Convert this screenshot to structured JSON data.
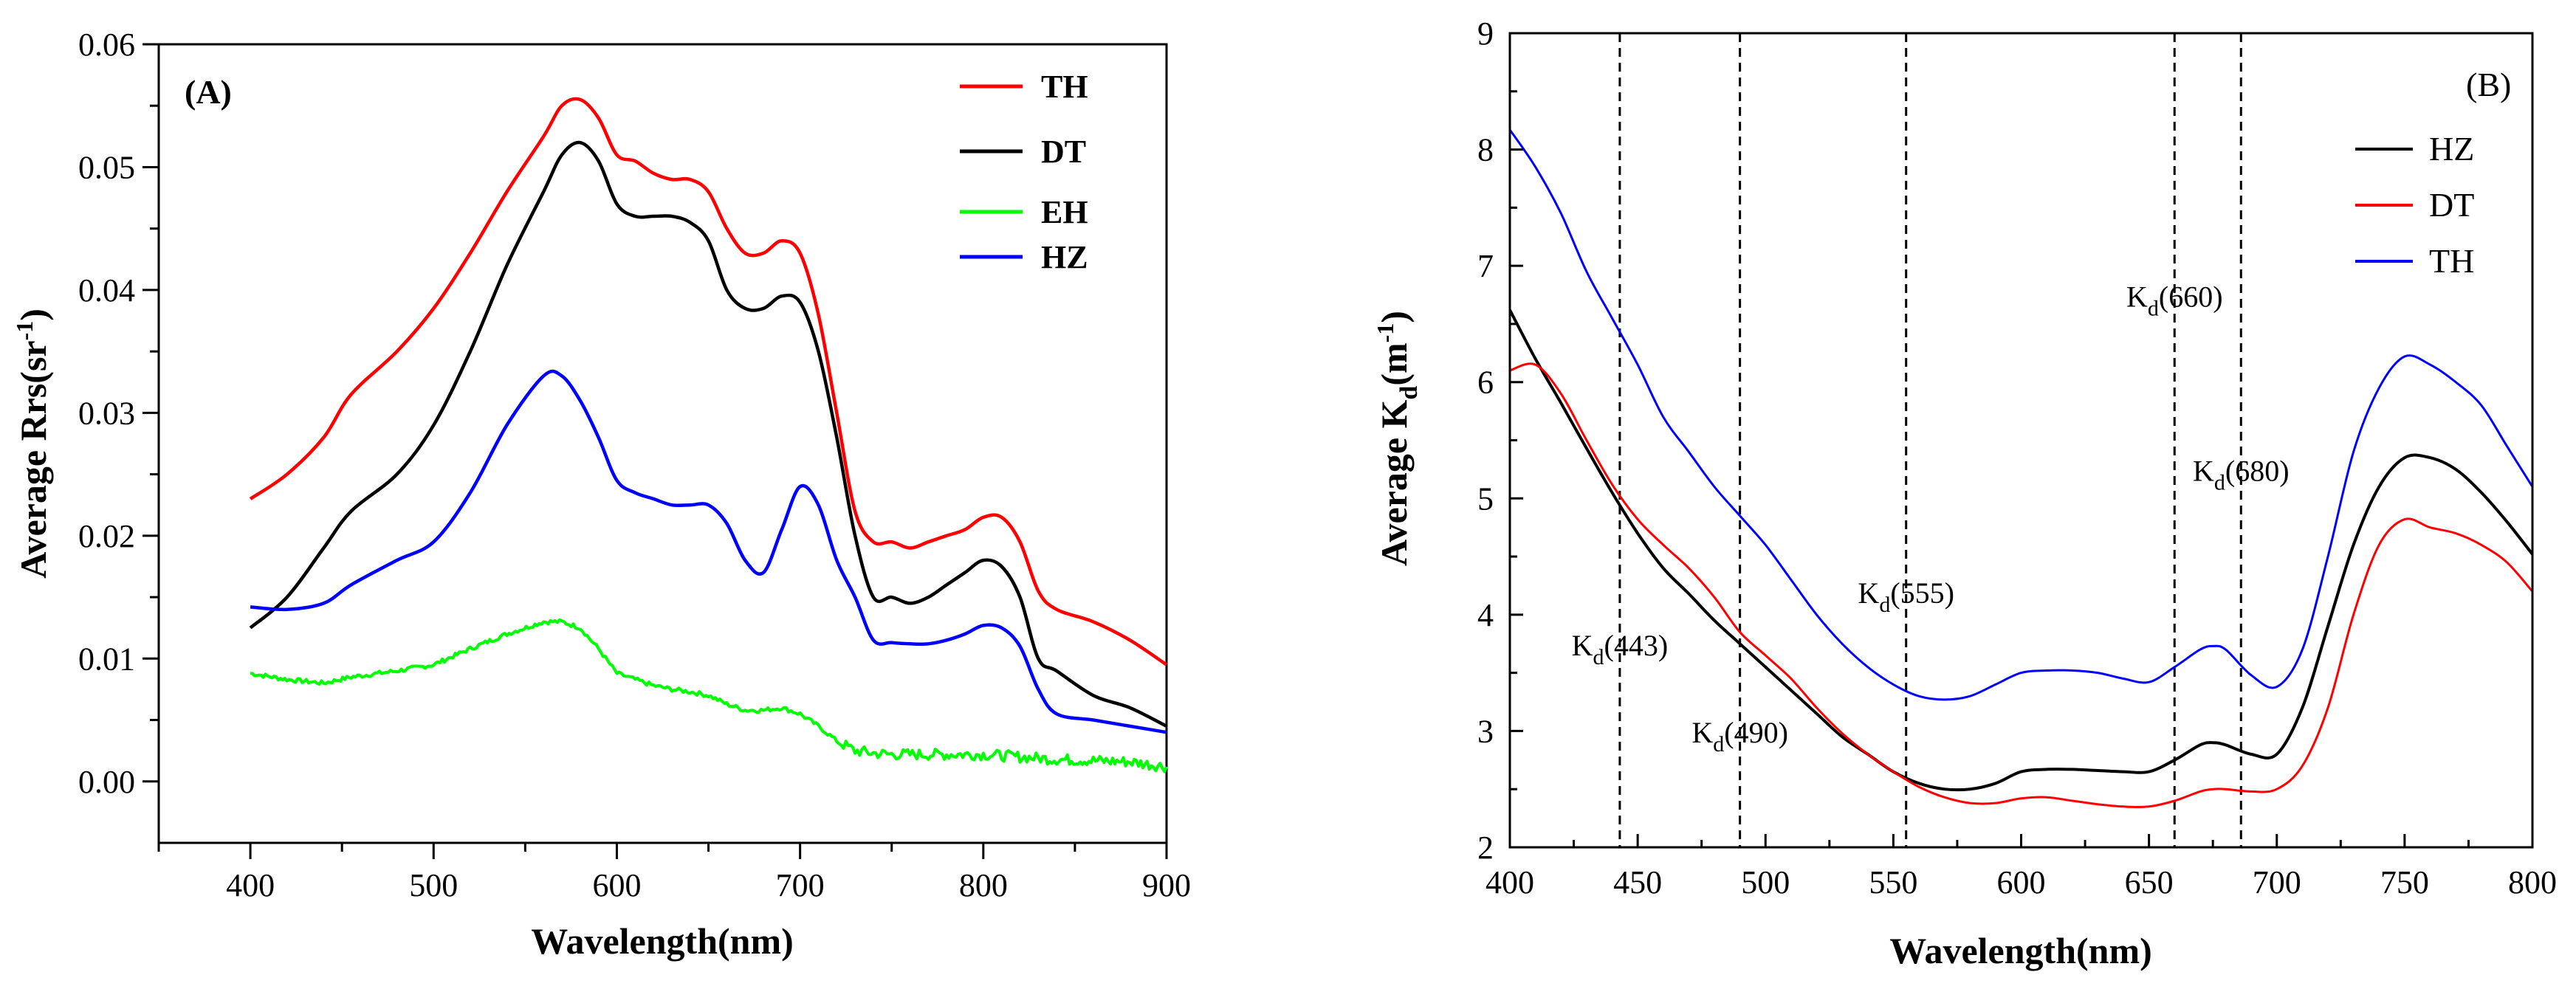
{
  "chart_data": [
    {
      "type": "line",
      "panel_label": "(A)",
      "xlabel": "Wavelength(nm)",
      "ylabel": "Average Rrs(sr",
      "ylabel_sup": "-1",
      "ylabel_close": ")",
      "xlim": [
        350,
        900
      ],
      "ylim": [
        -0.005,
        0.06
      ],
      "xticks": [
        400,
        500,
        600,
        700,
        800,
        900
      ],
      "yticks": [
        "0.00",
        "0.01",
        "0.02",
        "0.03",
        "0.04",
        "0.05",
        "0.06"
      ],
      "x": [
        400,
        420,
        440,
        455,
        480,
        500,
        520,
        540,
        560,
        570,
        580,
        590,
        600,
        610,
        620,
        630,
        640,
        650,
        660,
        670,
        680,
        690,
        700,
        710,
        720,
        730,
        740,
        750,
        760,
        770,
        780,
        790,
        800,
        810,
        820,
        830,
        840,
        860,
        880,
        900
      ],
      "series": [
        {
          "name": "TH",
          "color": "#ff0000",
          "values": [
            0.023,
            0.025,
            0.028,
            0.0315,
            0.035,
            0.0385,
            0.043,
            0.048,
            0.0525,
            0.055,
            0.0555,
            0.054,
            0.051,
            0.0505,
            0.0495,
            0.049,
            0.049,
            0.048,
            0.045,
            0.043,
            0.043,
            0.044,
            0.043,
            0.038,
            0.03,
            0.022,
            0.0195,
            0.0195,
            0.019,
            0.0195,
            0.02,
            0.0205,
            0.0215,
            0.0215,
            0.0195,
            0.0155,
            0.014,
            0.013,
            0.0115,
            0.0095
          ]
        },
        {
          "name": "DT",
          "color": "#000000",
          "values": [
            0.0125,
            0.015,
            0.019,
            0.022,
            0.025,
            0.029,
            0.035,
            0.042,
            0.048,
            0.051,
            0.052,
            0.0505,
            0.047,
            0.046,
            0.046,
            0.046,
            0.0455,
            0.044,
            0.04,
            0.0385,
            0.0385,
            0.0395,
            0.039,
            0.035,
            0.028,
            0.02,
            0.015,
            0.015,
            0.0145,
            0.015,
            0.016,
            0.017,
            0.018,
            0.0175,
            0.015,
            0.01,
            0.009,
            0.007,
            0.006,
            0.0045
          ]
        },
        {
          "name": "EH",
          "color": "#00ff00",
          "values": [
            0.0088,
            0.0083,
            0.008,
            0.0085,
            0.009,
            0.0095,
            0.0108,
            0.012,
            0.013,
            0.013,
            0.0125,
            0.0108,
            0.0088,
            0.0083,
            0.0078,
            0.0075,
            0.0073,
            0.007,
            0.0063,
            0.0058,
            0.0058,
            0.006,
            0.0055,
            0.0045,
            0.0033,
            0.0025,
            0.0023,
            0.0022,
            0.0022,
            0.0022,
            0.0022,
            0.0022,
            0.0022,
            0.0021,
            0.002,
            0.0019,
            0.0018,
            0.0017,
            0.0016,
            0.0012
          ]
        },
        {
          "name": "HZ",
          "color": "#0000ff",
          "values": [
            0.0142,
            0.014,
            0.0145,
            0.016,
            0.018,
            0.0195,
            0.0235,
            0.029,
            0.033,
            0.033,
            0.031,
            0.028,
            0.0245,
            0.0235,
            0.023,
            0.0225,
            0.0225,
            0.0225,
            0.021,
            0.018,
            0.017,
            0.0205,
            0.024,
            0.0225,
            0.018,
            0.015,
            0.0115,
            0.0113,
            0.0112,
            0.0112,
            0.0115,
            0.012,
            0.0127,
            0.0125,
            0.011,
            0.0075,
            0.0055,
            0.005,
            0.0045,
            0.004
          ]
        }
      ]
    },
    {
      "type": "line",
      "panel_label": "(B)",
      "xlabel": "Wavelength(nm)",
      "ylabel": "Average K",
      "ylabel_sub": "d",
      "ylabel_close": "(m",
      "ylabel_sup": "-1",
      "ylabel_end": ")",
      "xlim": [
        400,
        800
      ],
      "ylim": [
        2,
        9
      ],
      "xticks": [
        400,
        450,
        500,
        550,
        600,
        650,
        700,
        750,
        800
      ],
      "yticks": [
        2,
        3,
        4,
        5,
        6,
        7,
        8,
        9
      ],
      "x": [
        400,
        410,
        420,
        430,
        440,
        450,
        460,
        470,
        480,
        490,
        500,
        510,
        520,
        530,
        540,
        550,
        560,
        570,
        580,
        590,
        600,
        610,
        620,
        630,
        640,
        650,
        660,
        670,
        675,
        680,
        690,
        700,
        710,
        720,
        730,
        740,
        750,
        760,
        770,
        780,
        790,
        800
      ],
      "series": [
        {
          "name": "HZ",
          "color": "#000000",
          "values": [
            6.62,
            6.2,
            5.82,
            5.43,
            5.05,
            4.7,
            4.4,
            4.18,
            3.95,
            3.75,
            3.55,
            3.35,
            3.15,
            2.95,
            2.8,
            2.65,
            2.55,
            2.5,
            2.5,
            2.55,
            2.65,
            2.67,
            2.67,
            2.66,
            2.65,
            2.65,
            2.75,
            2.88,
            2.9,
            2.88,
            2.8,
            2.8,
            3.2,
            3.9,
            4.6,
            5.1,
            5.35,
            5.35,
            5.25,
            5.05,
            4.8,
            4.52
          ]
        },
        {
          "name": "DT",
          "color": "#ff0000",
          "values": [
            6.1,
            6.15,
            5.9,
            5.5,
            5.12,
            4.82,
            4.6,
            4.4,
            4.15,
            3.85,
            3.65,
            3.45,
            3.2,
            2.98,
            2.8,
            2.65,
            2.52,
            2.43,
            2.38,
            2.38,
            2.42,
            2.43,
            2.4,
            2.37,
            2.35,
            2.35,
            2.4,
            2.48,
            2.5,
            2.5,
            2.48,
            2.5,
            2.7,
            3.2,
            4.0,
            4.6,
            4.82,
            4.75,
            4.7,
            4.6,
            4.45,
            4.2
          ]
        },
        {
          "name": "TH",
          "color": "#0000ff",
          "values": [
            8.17,
            7.85,
            7.45,
            6.95,
            6.55,
            6.15,
            5.7,
            5.4,
            5.1,
            4.85,
            4.6,
            4.3,
            4.0,
            3.75,
            3.55,
            3.4,
            3.3,
            3.27,
            3.3,
            3.4,
            3.5,
            3.52,
            3.52,
            3.5,
            3.45,
            3.42,
            3.55,
            3.7,
            3.73,
            3.7,
            3.48,
            3.38,
            3.7,
            4.5,
            5.4,
            5.95,
            6.22,
            6.15,
            6.0,
            5.8,
            5.45,
            5.1
          ]
        }
      ],
      "vlines": [
        443,
        490,
        555,
        660,
        686
      ],
      "annotations": [
        {
          "id": "kd443",
          "main": "K",
          "sub": "d",
          "rest": "(443)",
          "x": 443,
          "y": 3.65
        },
        {
          "id": "kd490",
          "main": "K",
          "sub": "d",
          "rest": "(490)",
          "x": 490,
          "y": 2.9
        },
        {
          "id": "kd555",
          "main": "K",
          "sub": "d",
          "rest": "(555)",
          "x": 555,
          "y": 4.1
        },
        {
          "id": "kd660",
          "main": "K",
          "sub": "d",
          "rest": "(660)",
          "x": 660,
          "y": 6.65
        },
        {
          "id": "kd680",
          "main": "K",
          "sub": "d",
          "rest": "(680)",
          "x": 686,
          "y": 5.15
        }
      ]
    }
  ]
}
